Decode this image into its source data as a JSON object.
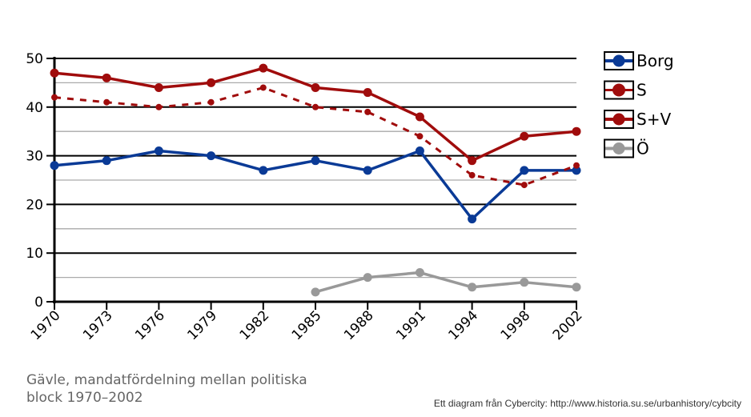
{
  "chart_data": {
    "type": "line",
    "title": "Gävle, mandatfördelning mellan politiska block 1970–2002",
    "xlabel": "",
    "ylabel": "",
    "categories": [
      "1970",
      "1973",
      "1976",
      "1979",
      "1982",
      "1985",
      "1988",
      "1991",
      "1994",
      "1998",
      "2002"
    ],
    "ylim": [
      0,
      50
    ],
    "yticks": [
      "0",
      "10",
      "20",
      "30",
      "40",
      "50"
    ],
    "grid": true,
    "legend_position": "right",
    "series": [
      {
        "name": "Borg",
        "color": "#0a3a96",
        "dashed": false,
        "values": [
          28,
          29,
          31,
          30,
          27,
          29,
          27,
          31,
          17,
          27,
          27
        ]
      },
      {
        "name": "S",
        "color": "#a00c0c",
        "dashed": true,
        "values": [
          42,
          41,
          40,
          41,
          44,
          40,
          39,
          34,
          26,
          24,
          28
        ]
      },
      {
        "name": "S+V",
        "color": "#a00c0c",
        "dashed": false,
        "values": [
          47,
          46,
          44,
          45,
          48,
          44,
          43,
          38,
          29,
          34,
          35
        ]
      },
      {
        "name": "Ö",
        "color": "#999999",
        "dashed": false,
        "values": [
          null,
          null,
          null,
          null,
          null,
          2,
          5,
          6,
          3,
          4,
          3
        ]
      }
    ]
  },
  "caption": "Gävle, mandatfördelning mellan politiska block 1970–2002",
  "credit": "Ett diagram från Cybercity: http://www.historia.su.se/urbanhistory/cybcity"
}
